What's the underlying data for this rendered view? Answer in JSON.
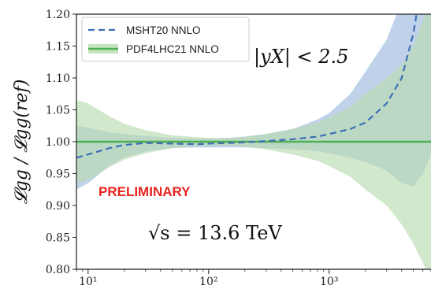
{
  "chart_data": {
    "type": "line",
    "title": "",
    "xlabel": "",
    "ylabel": "𝓛gg / 𝓛gg(ref)",
    "xscale": "log",
    "xlim": [
      8,
      7000
    ],
    "ylim": [
      0.8,
      1.2
    ],
    "x_ticks": [
      {
        "value": 10,
        "label": "10¹"
      },
      {
        "value": 100,
        "label": "10²"
      },
      {
        "value": 1000,
        "label": "10³"
      }
    ],
    "y_ticks": [
      "0.80",
      "0.85",
      "0.90",
      "0.95",
      "1.00",
      "1.05",
      "1.10",
      "1.15",
      "1.20"
    ],
    "grid": false,
    "legend_position": "top-left",
    "x": [
      8,
      10,
      15,
      20,
      30,
      50,
      80,
      100,
      150,
      200,
      300,
      500,
      800,
      1000,
      1500,
      2000,
      3000,
      4000,
      5000,
      6000,
      7000
    ],
    "series": [
      {
        "name": "MSHT20 NNLO",
        "color": "#3d6fb6",
        "band_color": "#a9c3e3",
        "style": "dashed",
        "central": [
          0.975,
          0.98,
          0.99,
          0.995,
          0.998,
          0.997,
          0.996,
          0.997,
          0.998,
          0.999,
          1.001,
          1.004,
          1.008,
          1.012,
          1.02,
          1.03,
          1.06,
          1.1,
          1.17,
          1.26,
          1.3
        ],
        "upper": [
          1.025,
          1.022,
          1.015,
          1.012,
          1.009,
          1.006,
          1.005,
          1.005,
          1.006,
          1.008,
          1.012,
          1.02,
          1.035,
          1.045,
          1.075,
          1.11,
          1.16,
          1.22,
          1.26,
          1.3,
          1.3
        ],
        "lower": [
          0.925,
          0.935,
          0.962,
          0.975,
          0.985,
          0.99,
          0.991,
          0.991,
          0.991,
          0.991,
          0.99,
          0.988,
          0.985,
          0.982,
          0.975,
          0.968,
          0.955,
          0.935,
          0.93,
          0.95,
          0.98
        ]
      },
      {
        "name": "PDF4LHC21 NNLO",
        "color": "#4caf50",
        "band_color": "#b9dcb0",
        "style": "solid",
        "central": [
          1.0,
          1.0,
          1.0,
          1.0,
          1.0,
          1.0,
          1.0,
          1.0,
          1.0,
          1.0,
          1.0,
          1.0,
          1.0,
          1.0,
          1.0,
          1.0,
          1.0,
          1.0,
          1.0,
          1.0,
          1.0
        ],
        "upper": [
          1.065,
          1.06,
          1.04,
          1.028,
          1.018,
          1.01,
          1.007,
          1.006,
          1.006,
          1.008,
          1.012,
          1.02,
          1.03,
          1.038,
          1.055,
          1.075,
          1.1,
          1.12,
          1.15,
          1.19,
          1.22
        ],
        "lower": [
          0.935,
          0.94,
          0.96,
          0.972,
          0.982,
          0.99,
          0.993,
          0.994,
          0.994,
          0.992,
          0.988,
          0.98,
          0.97,
          0.962,
          0.945,
          0.925,
          0.9,
          0.87,
          0.84,
          0.81,
          0.78
        ]
      }
    ],
    "annotations": [
      {
        "id": "rapidity",
        "text": "|yX| < 2.5"
      },
      {
        "id": "energy",
        "text": "√s = 13.6 TeV"
      },
      {
        "id": "preliminary",
        "text": "PRELIMINARY",
        "color": "#e8231e"
      }
    ]
  }
}
